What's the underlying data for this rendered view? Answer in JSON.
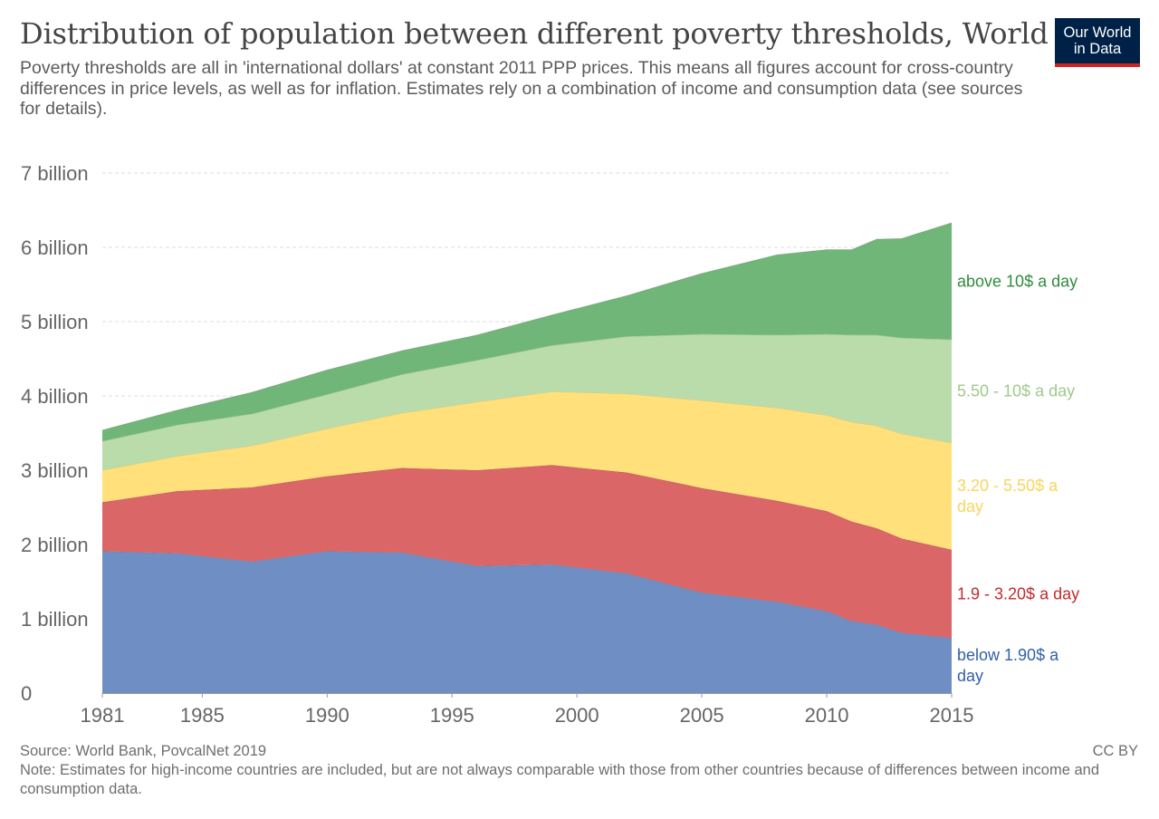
{
  "header": {
    "title": "Distribution of population between different poverty thresholds, World",
    "subtitle": "Poverty thresholds are all in 'international dollars' at constant 2011 PPP prices. This means all figures account for cross-country differences in price levels, as well as for inflation. Estimates rely on a combination of income and consumption data (see sources for details).",
    "logo_line1": "Our World",
    "logo_line2": "in Data"
  },
  "footer": {
    "source": "Source: World Bank, PovcalNet 2019",
    "note": "Note: Estimates for high-income countries are included, but are not always comparable with those from other countries because of differences between income and consumption data.",
    "license": "CC BY"
  },
  "chart_data": {
    "type": "area",
    "stacked": true,
    "x": [
      1981,
      1984,
      1987,
      1990,
      1993,
      1996,
      1999,
      2002,
      2005,
      2008,
      2010,
      2011,
      2012,
      2013,
      2015
    ],
    "x_ticks": [
      1981,
      1985,
      1990,
      1995,
      2000,
      2005,
      2010,
      2015
    ],
    "x_tick_labels": [
      "1981",
      "1985",
      "1990",
      "1995",
      "2000",
      "2005",
      "2010",
      "2015"
    ],
    "y_ticks": [
      0,
      1,
      2,
      3,
      4,
      5,
      6,
      7
    ],
    "y_tick_labels": [
      "0",
      "1 billion",
      "2 billion",
      "3 billion",
      "4 billion",
      "5 billion",
      "6 billion",
      "7 billion"
    ],
    "ylim": [
      0,
      7.4
    ],
    "y_unit": "billion",
    "grid": "horizontal dashed",
    "legend_placement": "right, inline labels",
    "series": [
      {
        "name": "below 1.90$ a day",
        "label_lines": [
          "below 1.90$ a",
          "day"
        ],
        "color": "#6f8fc4",
        "label_color": "#3360a9",
        "values": [
          1.91,
          1.88,
          1.77,
          1.91,
          1.89,
          1.71,
          1.73,
          1.61,
          1.35,
          1.23,
          1.1,
          0.97,
          0.92,
          0.81,
          0.74
        ]
      },
      {
        "name": "1.9 - 3.20$ a day",
        "label_lines": [
          "1.9 - 3.20$ a day"
        ],
        "color": "#da6668",
        "label_color": "#c42a2d",
        "values": [
          0.66,
          0.84,
          1.0,
          1.01,
          1.14,
          1.29,
          1.34,
          1.36,
          1.41,
          1.36,
          1.35,
          1.34,
          1.3,
          1.27,
          1.19
        ]
      },
      {
        "name": "3.20 - 5.50$ a day",
        "label_lines": [
          "3.20 - 5.50$ a",
          "day"
        ],
        "color": "#ffe07a",
        "label_color": "#f8d55c",
        "values": [
          0.43,
          0.47,
          0.56,
          0.64,
          0.74,
          0.92,
          0.99,
          1.06,
          1.18,
          1.25,
          1.29,
          1.34,
          1.38,
          1.41,
          1.44
        ]
      },
      {
        "name": "5.50 - 10$ a day",
        "label_lines": [
          "5.50 - 10$ a day"
        ],
        "color": "#badbaa",
        "label_color": "#9fc98b",
        "values": [
          0.39,
          0.42,
          0.43,
          0.46,
          0.52,
          0.56,
          0.62,
          0.77,
          0.89,
          0.98,
          1.09,
          1.17,
          1.22,
          1.29,
          1.39
        ]
      },
      {
        "name": "above 10$ a day",
        "label_lines": [
          "above 10$ a day"
        ],
        "color": "#71b679",
        "label_color": "#2f8c3b",
        "values": [
          0.15,
          0.2,
          0.29,
          0.33,
          0.32,
          0.34,
          0.41,
          0.55,
          0.82,
          1.08,
          1.14,
          1.15,
          1.29,
          1.34,
          1.57
        ]
      }
    ]
  }
}
